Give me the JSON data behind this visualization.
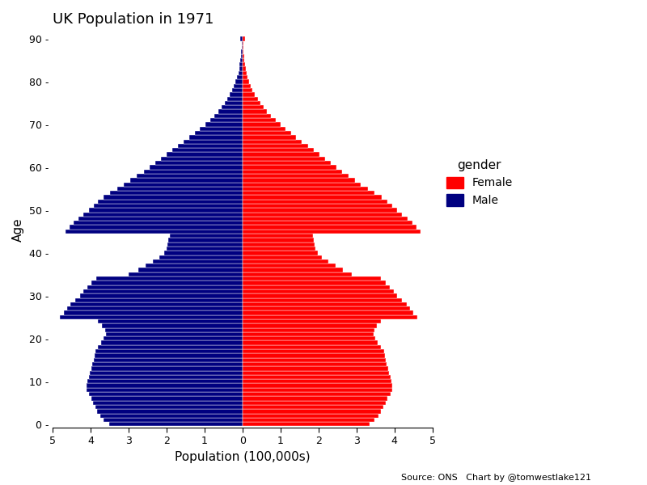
{
  "title": "UK Population in 1971",
  "xlabel": "Population (100,000s)",
  "ylabel": "Age",
  "male_color": "#000080",
  "female_color": "#FF0000",
  "background_color": "#FFFFFF",
  "source_text": "Source: ONS   Chart by @tomwestlake121",
  "ages": [
    0,
    1,
    2,
    3,
    4,
    5,
    6,
    7,
    8,
    9,
    10,
    11,
    12,
    13,
    14,
    15,
    16,
    17,
    18,
    19,
    20,
    21,
    22,
    23,
    24,
    25,
    26,
    27,
    28,
    29,
    30,
    31,
    32,
    33,
    34,
    35,
    36,
    37,
    38,
    39,
    40,
    41,
    42,
    43,
    44,
    45,
    46,
    47,
    48,
    49,
    50,
    51,
    52,
    53,
    54,
    55,
    56,
    57,
    58,
    59,
    60,
    61,
    62,
    63,
    64,
    65,
    66,
    67,
    68,
    69,
    70,
    71,
    72,
    73,
    74,
    75,
    76,
    77,
    78,
    79,
    80,
    81,
    82,
    83,
    84,
    85,
    86,
    87,
    88,
    89,
    90
  ],
  "male": [
    3.5,
    3.65,
    3.75,
    3.82,
    3.88,
    3.93,
    3.97,
    4.05,
    4.1,
    4.1,
    4.08,
    4.05,
    4.02,
    3.98,
    3.95,
    3.92,
    3.9,
    3.88,
    3.8,
    3.72,
    3.65,
    3.6,
    3.62,
    3.7,
    3.8,
    4.8,
    4.7,
    4.62,
    4.52,
    4.4,
    4.28,
    4.18,
    4.08,
    3.98,
    3.85,
    3.0,
    2.75,
    2.55,
    2.35,
    2.18,
    2.05,
    2.0,
    1.98,
    1.95,
    1.92,
    4.65,
    4.55,
    4.45,
    4.32,
    4.18,
    4.05,
    3.92,
    3.8,
    3.65,
    3.48,
    3.3,
    3.12,
    2.95,
    2.78,
    2.6,
    2.45,
    2.3,
    2.15,
    2.0,
    1.85,
    1.7,
    1.55,
    1.4,
    1.25,
    1.12,
    0.98,
    0.85,
    0.73,
    0.63,
    0.54,
    0.46,
    0.39,
    0.33,
    0.27,
    0.22,
    0.18,
    0.14,
    0.11,
    0.09,
    0.07,
    0.05,
    0.04,
    0.03,
    0.02,
    0.01,
    0.05
  ],
  "female": [
    3.35,
    3.48,
    3.58,
    3.65,
    3.72,
    3.77,
    3.82,
    3.9,
    3.95,
    3.95,
    3.93,
    3.9,
    3.87,
    3.83,
    3.8,
    3.77,
    3.75,
    3.73,
    3.65,
    3.57,
    3.5,
    3.45,
    3.47,
    3.55,
    3.65,
    4.6,
    4.5,
    4.42,
    4.32,
    4.2,
    4.08,
    3.98,
    3.88,
    3.78,
    3.65,
    2.88,
    2.65,
    2.45,
    2.26,
    2.1,
    1.98,
    1.93,
    1.91,
    1.88,
    1.86,
    4.68,
    4.58,
    4.48,
    4.35,
    4.2,
    4.08,
    3.94,
    3.82,
    3.66,
    3.48,
    3.3,
    3.12,
    2.96,
    2.8,
    2.62,
    2.48,
    2.32,
    2.18,
    2.02,
    1.87,
    1.72,
    1.57,
    1.42,
    1.28,
    1.14,
    1.0,
    0.87,
    0.75,
    0.64,
    0.55,
    0.47,
    0.4,
    0.33,
    0.27,
    0.22,
    0.18,
    0.14,
    0.11,
    0.09,
    0.07,
    0.05,
    0.04,
    0.03,
    0.02,
    0.02,
    0.08
  ]
}
